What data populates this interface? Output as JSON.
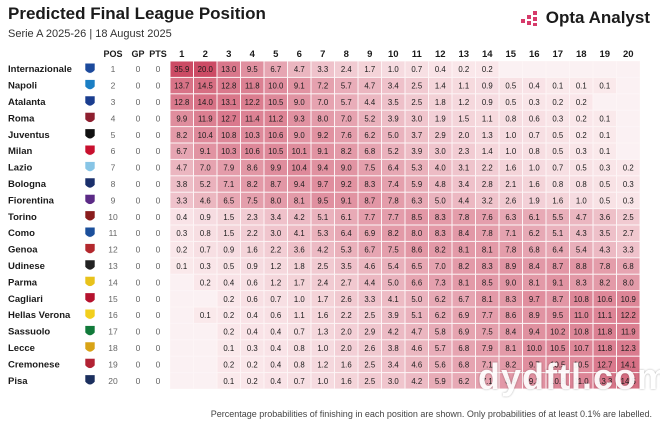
{
  "header": {
    "title": "Predicted Final League Position",
    "subtitle": "Serie A 2025-26 | 18 August 2025"
  },
  "brand": {
    "name": "Opta Analyst",
    "logo_icon": "opta-bars-icon"
  },
  "watermark": "dydftl.com",
  "footnote": "Percentage probabilities of finishing in each position are shown. Only probabilities of at least 0.1% are labelled.",
  "colors": {
    "cell_max": "#cc4b65",
    "cell_min": "#fbecee",
    "text": "#1b1b1b",
    "accent": "#d63a6a"
  },
  "chart_data": {
    "type": "heatmap",
    "title": "Predicted Final League Position",
    "column_headers": [
      "POS",
      "GP",
      "PTS"
    ],
    "positions": [
      1,
      2,
      3,
      4,
      5,
      6,
      7,
      8,
      9,
      10,
      11,
      12,
      13,
      14,
      15,
      16,
      17,
      18,
      19,
      20
    ],
    "teams": [
      {
        "name": "Internazionale",
        "pos": 1,
        "gp": 0,
        "pts": 0,
        "crest": "inter-crest-icon",
        "crest_color": "#1c4a9c",
        "values": [
          35.9,
          20.0,
          13.0,
          9.5,
          6.7,
          4.7,
          3.3,
          2.4,
          1.7,
          1.0,
          0.7,
          0.4,
          0.2,
          0.2,
          null,
          null,
          null,
          null,
          null,
          null
        ]
      },
      {
        "name": "Napoli",
        "pos": 2,
        "gp": 0,
        "pts": 0,
        "crest": "napoli-crest-icon",
        "crest_color": "#1b7fc4",
        "values": [
          13.7,
          14.5,
          12.8,
          11.8,
          10.0,
          9.1,
          7.2,
          5.7,
          4.7,
          3.4,
          2.5,
          1.4,
          1.1,
          0.9,
          0.5,
          0.4,
          0.1,
          0.1,
          0.1,
          null
        ]
      },
      {
        "name": "Atalanta",
        "pos": 3,
        "gp": 0,
        "pts": 0,
        "crest": "atalanta-crest-icon",
        "crest_color": "#1a3d8f",
        "values": [
          12.8,
          14.0,
          13.1,
          12.2,
          10.5,
          9.0,
          7.0,
          5.7,
          4.4,
          3.5,
          2.5,
          1.8,
          1.2,
          0.9,
          0.5,
          0.3,
          0.2,
          0.2,
          null,
          null
        ]
      },
      {
        "name": "Roma",
        "pos": 4,
        "gp": 0,
        "pts": 0,
        "crest": "roma-crest-icon",
        "crest_color": "#8e1f2f",
        "values": [
          9.9,
          11.9,
          12.7,
          11.4,
          11.2,
          9.3,
          8.0,
          7.0,
          5.2,
          3.9,
          3.0,
          1.9,
          1.5,
          1.1,
          0.8,
          0.6,
          0.3,
          0.2,
          0.1,
          null
        ]
      },
      {
        "name": "Juventus",
        "pos": 5,
        "gp": 0,
        "pts": 0,
        "crest": "juventus-crest-icon",
        "crest_color": "#111111",
        "values": [
          8.2,
          10.4,
          10.8,
          10.3,
          10.6,
          9.0,
          9.2,
          7.6,
          6.2,
          5.0,
          3.7,
          2.9,
          2.0,
          1.3,
          1.0,
          0.7,
          0.5,
          0.2,
          0.1,
          null
        ]
      },
      {
        "name": "Milan",
        "pos": 6,
        "gp": 0,
        "pts": 0,
        "crest": "milan-crest-icon",
        "crest_color": "#c8102e",
        "values": [
          6.7,
          9.1,
          10.3,
          10.6,
          10.5,
          10.1,
          9.1,
          8.2,
          6.8,
          5.2,
          3.9,
          3.0,
          2.3,
          1.4,
          1.0,
          0.8,
          0.5,
          0.3,
          0.1,
          null
        ]
      },
      {
        "name": "Lazio",
        "pos": 7,
        "gp": 0,
        "pts": 0,
        "crest": "lazio-crest-icon",
        "crest_color": "#87c5e6",
        "values": [
          4.7,
          7.0,
          7.9,
          8.6,
          9.9,
          10.4,
          9.4,
          9.0,
          7.5,
          6.4,
          5.3,
          4.0,
          3.1,
          2.2,
          1.6,
          1.0,
          0.7,
          0.5,
          0.3,
          0.2
        ]
      },
      {
        "name": "Bologna",
        "pos": 8,
        "gp": 0,
        "pts": 0,
        "crest": "bologna-crest-icon",
        "crest_color": "#1a2f6b",
        "values": [
          3.8,
          5.2,
          7.1,
          8.2,
          8.7,
          9.4,
          9.7,
          9.2,
          8.3,
          7.4,
          5.9,
          4.8,
          3.4,
          2.8,
          2.1,
          1.6,
          0.8,
          0.8,
          0.5,
          0.3
        ]
      },
      {
        "name": "Fiorentina",
        "pos": 9,
        "gp": 0,
        "pts": 0,
        "crest": "fiorentina-crest-icon",
        "crest_color": "#5b2a86",
        "values": [
          3.3,
          4.6,
          6.5,
          7.5,
          8.0,
          8.1,
          9.5,
          9.1,
          8.7,
          7.8,
          6.3,
          5.0,
          4.4,
          3.2,
          2.6,
          1.9,
          1.6,
          1.0,
          0.5,
          0.3
        ]
      },
      {
        "name": "Torino",
        "pos": 10,
        "gp": 0,
        "pts": 0,
        "crest": "torino-crest-icon",
        "crest_color": "#8a1c1c",
        "values": [
          0.4,
          0.9,
          1.5,
          2.3,
          3.4,
          4.2,
          5.1,
          6.1,
          7.7,
          7.7,
          8.5,
          8.3,
          7.8,
          7.6,
          6.3,
          6.1,
          5.5,
          4.7,
          3.6,
          2.5
        ]
      },
      {
        "name": "Como",
        "pos": 11,
        "gp": 0,
        "pts": 0,
        "crest": "como-crest-icon",
        "crest_color": "#1b4f9b",
        "values": [
          0.3,
          0.8,
          1.5,
          2.2,
          3.0,
          4.1,
          5.3,
          6.4,
          6.9,
          8.2,
          8.0,
          8.3,
          8.4,
          7.8,
          7.1,
          6.2,
          5.1,
          4.3,
          3.5,
          2.7
        ]
      },
      {
        "name": "Genoa",
        "pos": 12,
        "gp": 0,
        "pts": 0,
        "crest": "genoa-crest-icon",
        "crest_color": "#b3282d",
        "values": [
          0.2,
          0.7,
          0.9,
          1.6,
          2.2,
          3.6,
          4.2,
          5.3,
          6.7,
          7.5,
          8.6,
          8.2,
          8.1,
          8.1,
          7.8,
          6.8,
          6.4,
          5.4,
          4.3,
          3.3
        ]
      },
      {
        "name": "Udinese",
        "pos": 13,
        "gp": 0,
        "pts": 0,
        "crest": "udinese-crest-icon",
        "crest_color": "#222222",
        "values": [
          0.1,
          0.3,
          0.5,
          0.9,
          1.2,
          1.8,
          2.5,
          3.5,
          4.6,
          5.4,
          6.5,
          7.0,
          8.2,
          8.3,
          8.9,
          8.4,
          8.7,
          8.8,
          7.8,
          6.8
        ]
      },
      {
        "name": "Parma",
        "pos": 14,
        "gp": 0,
        "pts": 0,
        "crest": "parma-crest-icon",
        "crest_color": "#e8c21b",
        "values": [
          null,
          0.2,
          0.4,
          0.6,
          1.2,
          1.7,
          2.4,
          2.7,
          4.4,
          5.0,
          6.6,
          7.3,
          8.1,
          8.5,
          9.0,
          8.1,
          9.1,
          8.3,
          8.2,
          8.0
        ]
      },
      {
        "name": "Cagliari",
        "pos": 15,
        "gp": 0,
        "pts": 0,
        "crest": "cagliari-crest-icon",
        "crest_color": "#b5122e",
        "values": [
          null,
          null,
          0.2,
          0.6,
          0.7,
          1.0,
          1.7,
          2.6,
          3.3,
          4.1,
          5.0,
          6.2,
          6.7,
          8.1,
          8.3,
          9.7,
          8.7,
          10.8,
          10.6,
          10.9
        ]
      },
      {
        "name": "Hellas Verona",
        "pos": 16,
        "gp": 0,
        "pts": 0,
        "crest": "verona-crest-icon",
        "crest_color": "#f2cf1d",
        "values": [
          null,
          0.1,
          0.2,
          0.4,
          0.6,
          1.1,
          1.6,
          2.2,
          2.5,
          3.9,
          5.1,
          6.2,
          6.9,
          7.7,
          8.6,
          8.9,
          9.5,
          11.0,
          11.1,
          12.2
        ]
      },
      {
        "name": "Sassuolo",
        "pos": 17,
        "gp": 0,
        "pts": 0,
        "crest": "sassuolo-crest-icon",
        "crest_color": "#117a3a",
        "values": [
          null,
          null,
          0.2,
          0.4,
          0.4,
          0.7,
          1.3,
          2.0,
          2.9,
          4.2,
          4.7,
          5.8,
          6.9,
          7.5,
          8.4,
          9.4,
          10.2,
          10.8,
          11.8,
          11.9
        ]
      },
      {
        "name": "Lecce",
        "pos": 18,
        "gp": 0,
        "pts": 0,
        "crest": "lecce-crest-icon",
        "crest_color": "#d8a316",
        "values": [
          null,
          null,
          0.1,
          0.3,
          0.4,
          0.8,
          1.0,
          2.0,
          2.6,
          3.8,
          4.6,
          5.7,
          6.8,
          7.9,
          8.1,
          10.0,
          10.5,
          10.7,
          11.8,
          12.3
        ]
      },
      {
        "name": "Cremonese",
        "pos": 19,
        "gp": 0,
        "pts": 0,
        "crest": "cremonese-crest-icon",
        "crest_color": "#b22234",
        "values": [
          null,
          null,
          0.2,
          0.2,
          0.4,
          0.8,
          1.2,
          1.6,
          2.5,
          3.4,
          4.6,
          5.6,
          6.8,
          7.1,
          8.2,
          9.7,
          10.5,
          10.5,
          12.7,
          14.1
        ]
      },
      {
        "name": "Pisa",
        "pos": 20,
        "gp": 0,
        "pts": 0,
        "crest": "pisa-crest-icon",
        "crest_color": "#1b2f5e",
        "values": [
          null,
          null,
          0.1,
          0.2,
          0.4,
          0.7,
          1.0,
          1.6,
          2.5,
          3.0,
          4.2,
          5.9,
          6.2,
          7.1,
          8.4,
          9.3,
          10.8,
          11.0,
          13.3,
          14.5
        ]
      }
    ]
  }
}
